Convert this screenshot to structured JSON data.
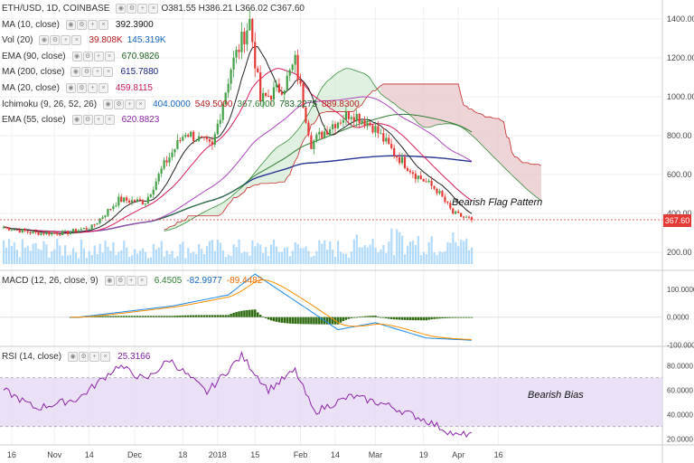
{
  "header": {
    "symbol": "ETH/USD, 1D, COINBASE",
    "open_label": "O",
    "open": "381.55",
    "high_label": "H",
    "high": "386.21",
    "low_label": "L",
    "low": "366.02",
    "close_label": "C",
    "close": "367.60"
  },
  "indicators": [
    {
      "label": "MA (10, close)",
      "values": [
        "392.3900"
      ],
      "colors": [
        "#111111"
      ]
    },
    {
      "label": "Vol (20)",
      "values": [
        "39.808K",
        "145.319K"
      ],
      "colors": [
        "#b71c1c",
        "#1565c0"
      ]
    },
    {
      "label": "EMA (90, close)",
      "values": [
        "670.9826"
      ],
      "colors": [
        "#1b5e20"
      ]
    },
    {
      "label": "MA (200, close)",
      "values": [
        "615.7880"
      ],
      "colors": [
        "#1a237e"
      ]
    },
    {
      "label": "MA (20, close)",
      "values": [
        "459.8115"
      ],
      "colors": [
        "#c2185b"
      ]
    },
    {
      "label": "Ichimoku (9, 26, 52, 26)",
      "values": [
        "404.0000",
        "549.5000",
        "367.6000",
        "783.2275",
        "889.8300"
      ],
      "colors": [
        "#1565c0",
        "#b71c1c",
        "#2e7d32",
        "#1b5e20",
        "#b71c1c"
      ]
    },
    {
      "label": "EMA (55, close)",
      "values": [
        "620.8823"
      ],
      "colors": [
        "#8e24aa"
      ]
    }
  ],
  "annotations": {
    "flag": "Bearish Flag Pattern",
    "bias": "Bearish Bias"
  },
  "price_tag": "367.60",
  "macd_header": {
    "label": "MACD (12, 26, close, 9)",
    "values": [
      "6.4505",
      "-82.9977",
      "-89.4482"
    ],
    "colors": [
      "#2e7d32",
      "#1565c0",
      "#ef6c00"
    ]
  },
  "rsi_header": {
    "label": "RSI (14, close)",
    "values": [
      "25.3166"
    ],
    "colors": [
      "#7b1fa2"
    ]
  },
  "colors": {
    "up": "#43a047",
    "down": "#e53935",
    "volume": "#90caf9",
    "macd_hist": "#2e6b10",
    "rsi": "#8e24aa",
    "rsi_band": "#e6daf5"
  },
  "chart_data": [
    {
      "type": "candlestick",
      "title": "ETH/USD, 1D, COINBASE",
      "x_ticks": [
        "16",
        "Nov",
        "14",
        "Dec",
        "18",
        "2018",
        "15",
        "Feb",
        "14",
        "Mar",
        "19",
        "Apr",
        "16"
      ],
      "y_ticks": [
        200,
        400,
        600,
        800,
        1000,
        1200,
        1400
      ],
      "y_tick_labels": [
        "200.00",
        "400.00",
        "600.00",
        "800.00",
        "1000.00",
        "1200.00",
        "1400.00"
      ],
      "ylim": [
        140,
        1460
      ],
      "approx_close_path": [
        {
          "date": "Oct 13",
          "close": 330
        },
        {
          "date": "Oct 24",
          "close": 300
        },
        {
          "date": "Nov 5",
          "close": 300
        },
        {
          "date": "Nov 15",
          "close": 330
        },
        {
          "date": "Nov 25",
          "close": 470
        },
        {
          "date": "Dec 5",
          "close": 460
        },
        {
          "date": "Dec 12",
          "close": 650
        },
        {
          "date": "Dec 20",
          "close": 820
        },
        {
          "date": "Dec 30",
          "close": 740
        },
        {
          "date": "Jan 6",
          "close": 1150
        },
        {
          "date": "Jan 13",
          "close": 1390
        },
        {
          "date": "Jan 17",
          "close": 980
        },
        {
          "date": "Jan 26",
          "close": 1060
        },
        {
          "date": "Jan 30",
          "close": 1180
        },
        {
          "date": "Feb 5",
          "close": 760
        },
        {
          "date": "Feb 13",
          "close": 860
        },
        {
          "date": "Feb 20",
          "close": 920
        },
        {
          "date": "Feb 28",
          "close": 850
        },
        {
          "date": "Mar 8",
          "close": 710
        },
        {
          "date": "Mar 16",
          "close": 600
        },
        {
          "date": "Mar 24",
          "close": 520
        },
        {
          "date": "Mar 30",
          "close": 400
        },
        {
          "date": "Apr 6",
          "close": 367.6
        }
      ],
      "last_close": 367.6
    },
    {
      "type": "line",
      "title": "MACD (12, 26, close, 9)",
      "y_ticks": [
        -100,
        0,
        100
      ],
      "y_tick_labels": [
        "-100.0000",
        "0.0000",
        "100.0000"
      ],
      "ylim": [
        -105,
        165
      ],
      "macd_approx": [
        {
          "date": "Nov 10",
          "macd": 0
        },
        {
          "date": "Dec 15",
          "macd": 40
        },
        {
          "date": "Jan 5",
          "macd": 80
        },
        {
          "date": "Jan 15",
          "macd": 155
        },
        {
          "date": "Feb 5",
          "macd": 20
        },
        {
          "date": "Feb 15",
          "macd": -45
        },
        {
          "date": "Mar 1",
          "macd": -20
        },
        {
          "date": "Mar 20",
          "macd": -75
        },
        {
          "date": "Apr 6",
          "macd": -83
        }
      ],
      "last_values": {
        "histogram": 6.4505,
        "macd": -82.9977,
        "signal": -89.4482
      }
    },
    {
      "type": "line",
      "title": "RSI (14, close)",
      "y_ticks": [
        20,
        40,
        60,
        80
      ],
      "y_tick_labels": [
        "20.0000",
        "40.0000",
        "60.0000",
        "80.0000"
      ],
      "ylim": [
        15,
        95
      ],
      "bands": [
        30,
        70
      ],
      "rsi_approx": [
        {
          "date": "Oct 13",
          "rsi": 60
        },
        {
          "date": "Oct 25",
          "rsi": 45
        },
        {
          "date": "Nov 10",
          "rsi": 53
        },
        {
          "date": "Nov 25",
          "rsi": 80
        },
        {
          "date": "Dec 5",
          "rsi": 68
        },
        {
          "date": "Dec 14",
          "rsi": 85
        },
        {
          "date": "Dec 28",
          "rsi": 58
        },
        {
          "date": "Jan 10",
          "rsi": 88
        },
        {
          "date": "Jan 20",
          "rsi": 60
        },
        {
          "date": "Jan 30",
          "rsi": 76
        },
        {
          "date": "Feb 6",
          "rsi": 42
        },
        {
          "date": "Feb 20",
          "rsi": 55
        },
        {
          "date": "Mar 5",
          "rsi": 48
        },
        {
          "date": "Mar 20",
          "rsi": 35
        },
        {
          "date": "Apr 1",
          "rsi": 22
        },
        {
          "date": "Apr 6",
          "rsi": 25.3
        }
      ],
      "last_value": 25.3166
    }
  ]
}
